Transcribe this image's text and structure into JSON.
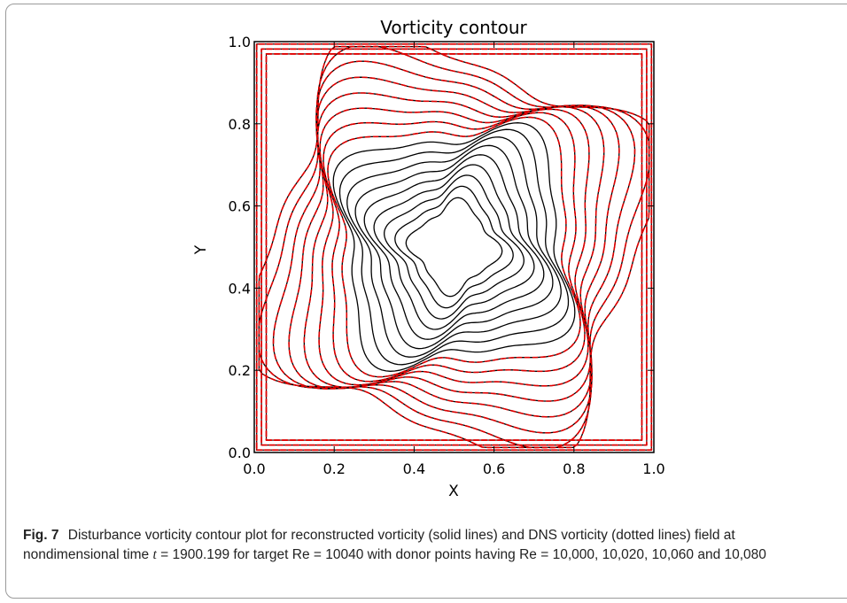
{
  "chart_data": {
    "type": "contour",
    "title": "Vorticity contour",
    "xlabel": "X",
    "ylabel": "Y",
    "xlim": [
      0.0,
      1.0
    ],
    "ylim": [
      0.0,
      1.0
    ],
    "x_ticks": [
      "0.0",
      "0.2",
      "0.4",
      "0.6",
      "0.8",
      "1.0"
    ],
    "y_ticks": [
      "0.0",
      "0.2",
      "0.4",
      "0.6",
      "0.8",
      "1.0"
    ],
    "grid": false,
    "series": [
      {
        "style": "solid",
        "color": "#000000"
      },
      {
        "style": "dashed",
        "color": "#e00000"
      }
    ]
  },
  "caption": {
    "label": "Fig. 7",
    "text_before_t": "Disturbance vorticity contour plot for reconstructed vorticity (solid lines) and DNS vorticity (dotted lines) field at nondimensional time ",
    "t_symbol": "t",
    "text_after_t": " = 1900.199 for target Re = 10040 with donor points having Re = 10,000, 10,020, 10,060  and  10,080"
  }
}
